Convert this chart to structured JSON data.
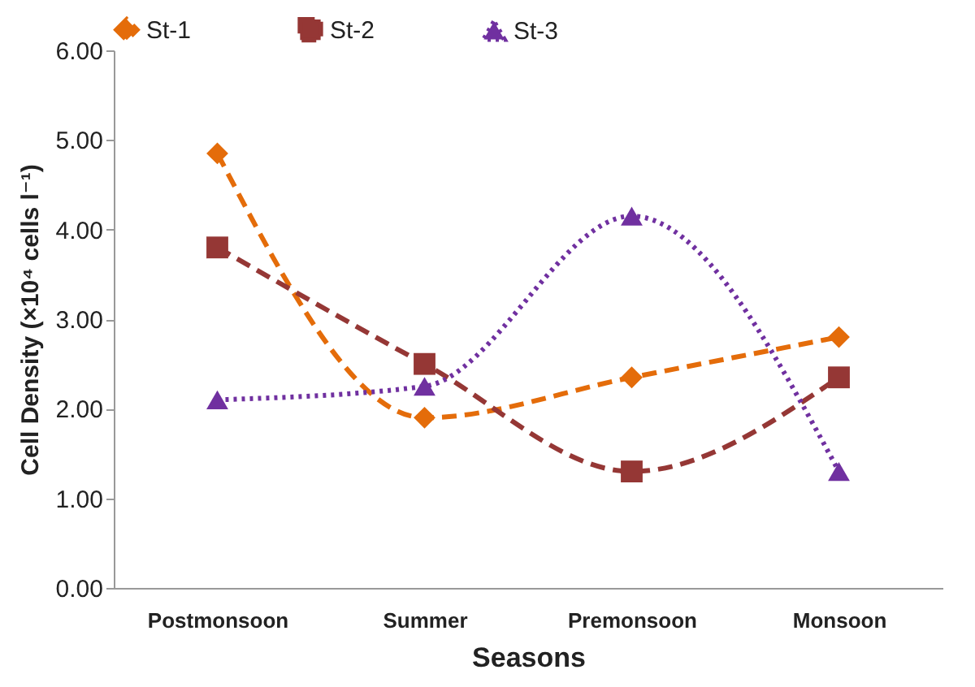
{
  "chart_data": {
    "type": "line",
    "xlabel": "Seasons",
    "ylabel": "Cell Density (×10⁴ cells l⁻¹)",
    "categories": [
      "Postmonsoon",
      "Summer",
      "Premonsoon",
      "Monsoon"
    ],
    "series": [
      {
        "name": "St-1",
        "color": "#e46c0a",
        "marker": "diamond",
        "line_style": "dashed",
        "values": [
          4.85,
          1.9,
          2.35,
          2.8
        ]
      },
      {
        "name": "St-2",
        "color": "#953735",
        "marker": "square",
        "line_style": "dashed",
        "values": [
          3.8,
          2.5,
          1.3,
          2.35
        ]
      },
      {
        "name": "St-3",
        "color": "#7030a0",
        "marker": "triangle",
        "line_style": "dotted",
        "values": [
          2.1,
          2.25,
          4.15,
          1.3
        ]
      }
    ],
    "ylim": [
      0,
      6
    ],
    "yticks": [
      {
        "value": 0,
        "label": "0.00"
      },
      {
        "value": 1,
        "label": "1.00"
      },
      {
        "value": 2,
        "label": "2.00"
      },
      {
        "value": 3,
        "label": "3.00"
      },
      {
        "value": 4,
        "label": "4.00"
      },
      {
        "value": 5,
        "label": "5.00"
      },
      {
        "value": 6,
        "label": "6.00"
      }
    ],
    "grid": false,
    "legend": "top"
  }
}
